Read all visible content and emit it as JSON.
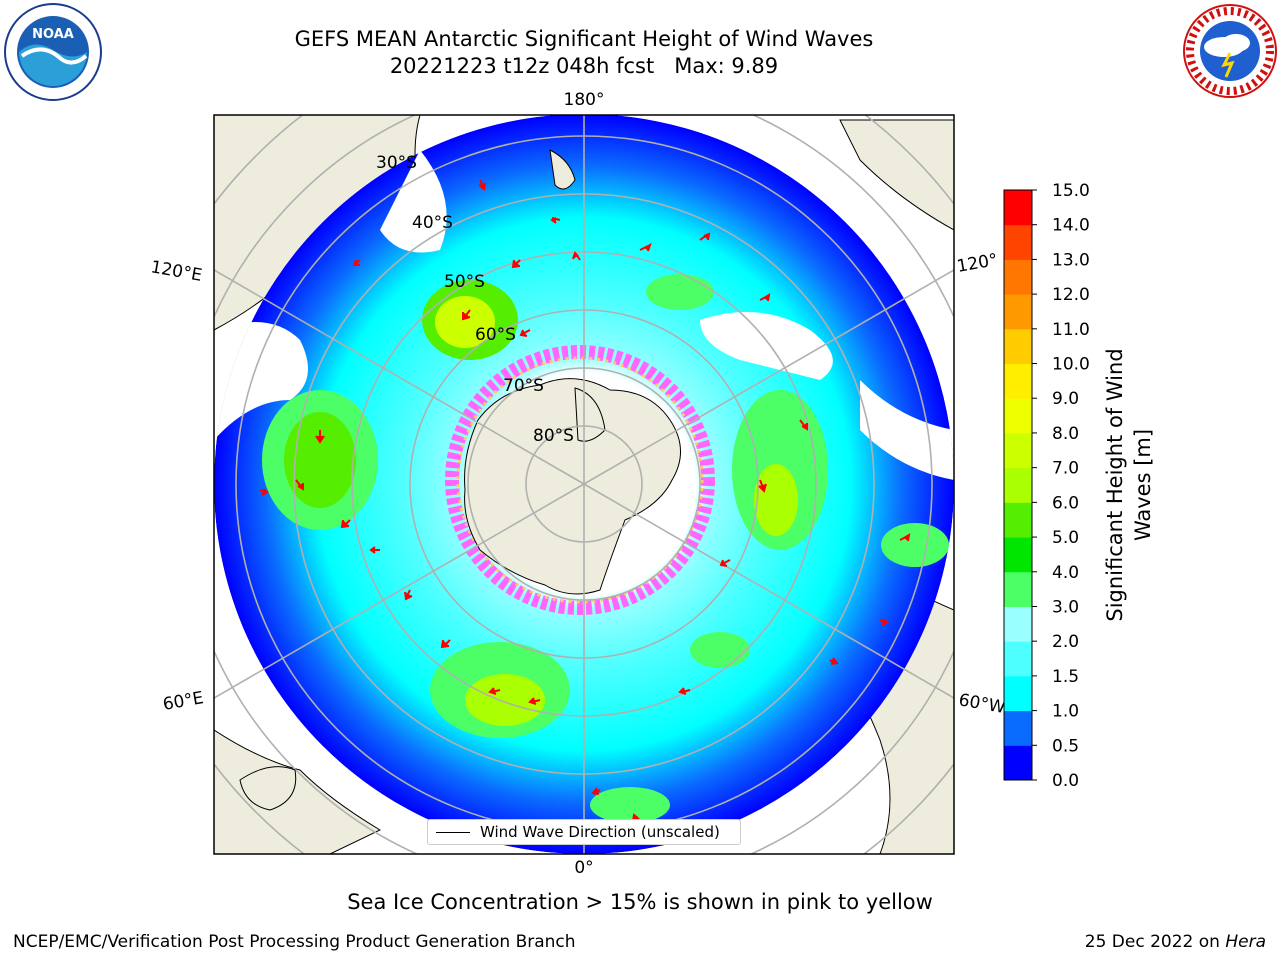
{
  "title_line1": "GEFS MEAN Antarctic Significant Height of Wind Waves",
  "title_line2": "20221223 t12z 048h fcst   Max: 9.89",
  "logos": {
    "left": "NOAA",
    "right": "NATIONAL WEATHER SERVICE"
  },
  "longitude_labels": {
    "top": "180°",
    "upper_left": "120°E",
    "upper_right": "120°",
    "lower_left": "60°E",
    "lower_right": "60°W",
    "bottom": "0°"
  },
  "latitude_labels": [
    "30°S",
    "40°S",
    "50°S",
    "60°S",
    "70°S",
    "80°S"
  ],
  "legend": {
    "label": "Wind Wave Direction (unscaled)"
  },
  "colorbar": {
    "label": "Significant Height of Wind Waves [m]",
    "label_line1": "Significant Height of Wind",
    "label_line2": "Waves [m]",
    "ticks": [
      "0.0",
      "0.5",
      "1.0",
      "1.5",
      "2.0",
      "3.0",
      "4.0",
      "5.0",
      "6.0",
      "7.0",
      "8.0",
      "9.0",
      "10.0",
      "11.0",
      "12.0",
      "13.0",
      "14.0",
      "15.0"
    ],
    "colors": [
      "#0000ff",
      "#0a6cff",
      "#00ffff",
      "#4dffff",
      "#99ffff",
      "#4dff66",
      "#00e600",
      "#55ee00",
      "#aaff00",
      "#ccff00",
      "#eeff00",
      "#ffee00",
      "#ffcc00",
      "#ff9900",
      "#ff7700",
      "#ff4400",
      "#ff0000"
    ]
  },
  "caption": "Sea Ice Concentration > 15% is shown in pink to yellow",
  "footer_left": "NCEP/EMC/Verification Post Processing Product Generation Branch",
  "footer_right_date": "25 Dec 2022 on ",
  "footer_right_host": "Hera",
  "colors": {
    "land": "#eeeddd",
    "ocean_low": "#0000ff",
    "ice": "#ff66ff",
    "arrow": "#ff0000",
    "grid": "#b0b0b0"
  }
}
